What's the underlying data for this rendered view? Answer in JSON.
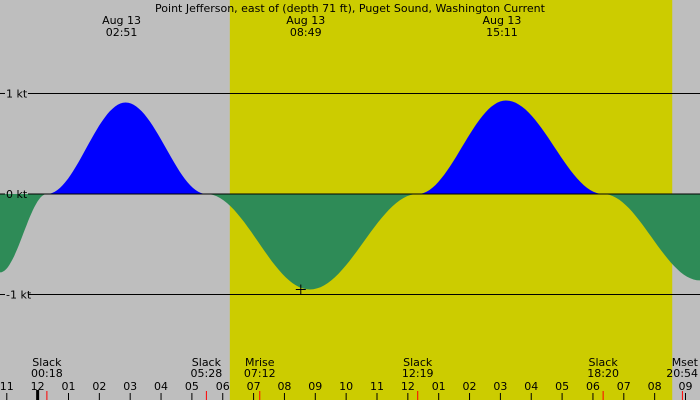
{
  "chart_data": {
    "type": "area",
    "title": "Point Jefferson, east of (depth 71 ft), Puget Sound, Washington Current",
    "y_unit": "kt",
    "y_ticks": [
      {
        "value": 1,
        "label": "1 kt"
      },
      {
        "value": 0,
        "label": "0 kt"
      },
      {
        "value": -1,
        "label": "-1 kt"
      }
    ],
    "ylim": [
      -1.93,
      1.93
    ],
    "xlim": [
      -1.22,
      21.47
    ],
    "grid": true,
    "colors": {
      "background": "#bebebe",
      "daylight": "#cccc00",
      "flood": "#0000ff",
      "ebb": "#2e8b57",
      "gridline": "#000000",
      "event_tick": "#ff0000"
    },
    "daylight_interval": [
      6.23,
      20.57
    ],
    "extrema": [
      {
        "time": 2.85,
        "value": 0.91,
        "date": "Aug 13",
        "time_label": "02:51"
      },
      {
        "time": 8.82,
        "value": -0.95,
        "date": "Aug 13",
        "time_label": "08:49"
      },
      {
        "time": 15.18,
        "value": 0.93,
        "date": "Aug 13",
        "time_label": "15:11"
      }
    ],
    "series": [
      {
        "x": [
          -1.22,
          0.3,
          2.85,
          5.47,
          8.82,
          12.32,
          15.18,
          18.33,
          21.47
        ],
        "y": [
          -0.78,
          0,
          0.91,
          0,
          -0.95,
          0,
          0.93,
          0,
          -0.86
        ]
      }
    ],
    "events": [
      {
        "label": "Slack",
        "time_label": "00:18",
        "time": 0.3
      },
      {
        "label": "Slack",
        "time_label": "05:28",
        "time": 5.47
      },
      {
        "label": "Mrise",
        "time_label": "07:12",
        "time": 7.2
      },
      {
        "label": "Slack",
        "time_label": "12:19",
        "time": 12.32
      },
      {
        "label": "Slack",
        "time_label": "18:20",
        "time": 18.33
      },
      {
        "label": "Mset",
        "time_label": "20:54",
        "time": 20.9
      }
    ],
    "x_ticks": [
      {
        "value": -1,
        "label": "11"
      },
      {
        "value": 0,
        "label": "12"
      },
      {
        "value": 1,
        "label": "01"
      },
      {
        "value": 2,
        "label": "02"
      },
      {
        "value": 3,
        "label": "03"
      },
      {
        "value": 4,
        "label": "04"
      },
      {
        "value": 5,
        "label": "05"
      },
      {
        "value": 6,
        "label": "06"
      },
      {
        "value": 7,
        "label": "07"
      },
      {
        "value": 8,
        "label": "08"
      },
      {
        "value": 9,
        "label": "09"
      },
      {
        "value": 10,
        "label": "10"
      },
      {
        "value": 11,
        "label": "11"
      },
      {
        "value": 12,
        "label": "12"
      },
      {
        "value": 13,
        "label": "01"
      },
      {
        "value": 14,
        "label": "02"
      },
      {
        "value": 15,
        "label": "03"
      },
      {
        "value": 16,
        "label": "04"
      },
      {
        "value": 17,
        "label": "05"
      },
      {
        "value": 18,
        "label": "06"
      },
      {
        "value": 19,
        "label": "07"
      },
      {
        "value": 20,
        "label": "08"
      },
      {
        "value": 21,
        "label": "09"
      }
    ],
    "current_marker": {
      "time": 8.53,
      "value": -0.95
    }
  }
}
